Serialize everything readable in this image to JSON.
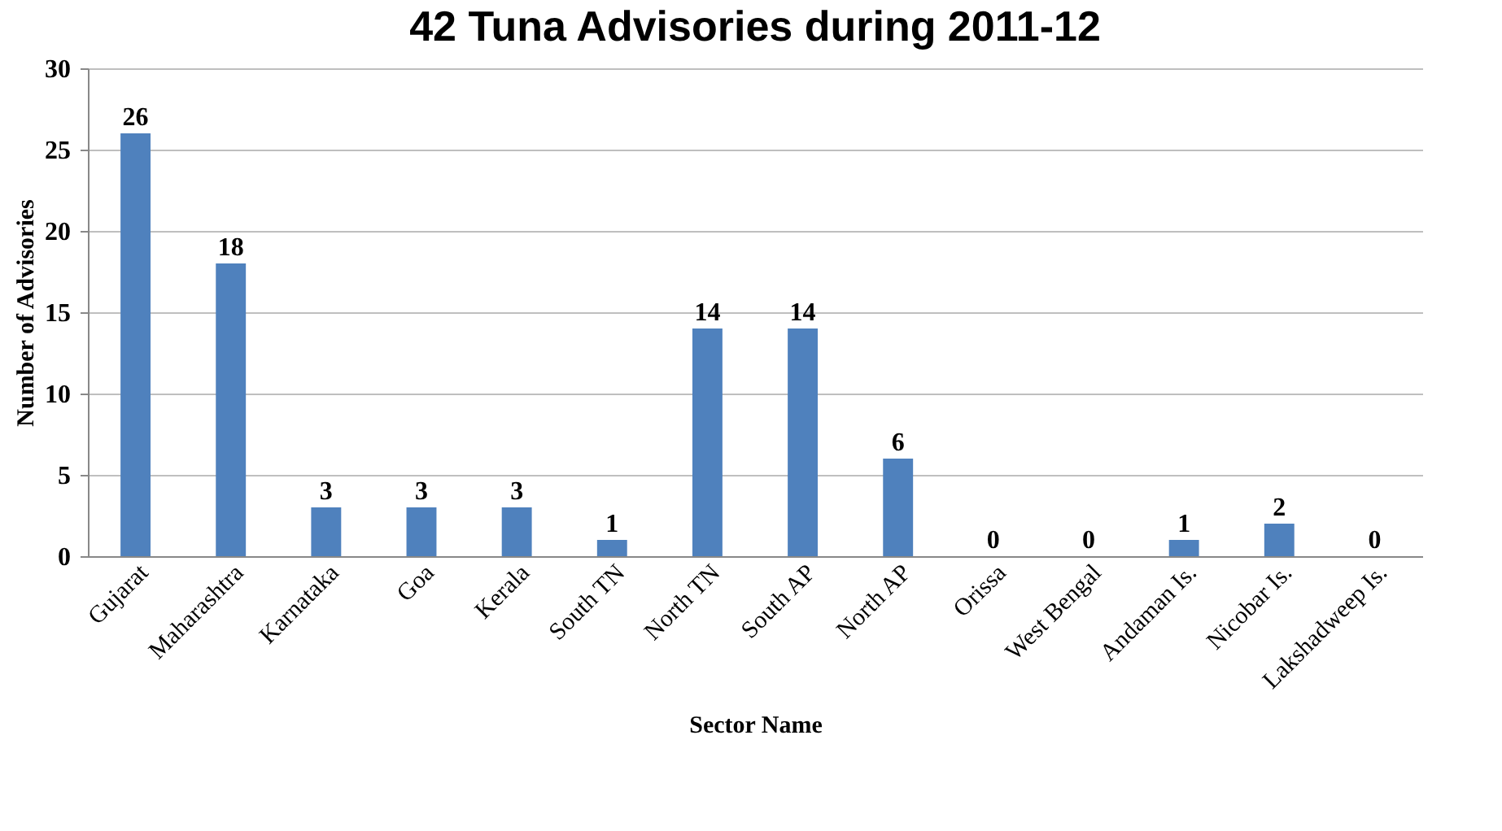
{
  "chart_data": {
    "type": "bar",
    "title": "42 Tuna Advisories during 2011-12",
    "xlabel": "Sector Name",
    "ylabel": "Number of Advisories",
    "categories": [
      "Gujarat",
      "Maharashtra",
      "Karnataka",
      "Goa",
      "Kerala",
      "South TN",
      "North TN",
      "South AP",
      "North AP",
      "Orissa",
      "West Bengal",
      "Andaman Is.",
      "Nicobar Is.",
      "Lakshadweep Is."
    ],
    "values": [
      26,
      18,
      3,
      3,
      3,
      1,
      14,
      14,
      6,
      0,
      0,
      1,
      2,
      0
    ],
    "color": "#4f81bd",
    "ylim": [
      0,
      30
    ],
    "yticks": [
      0,
      5,
      10,
      15,
      20,
      25,
      30
    ],
    "grid": "y",
    "data_labels": true
  }
}
